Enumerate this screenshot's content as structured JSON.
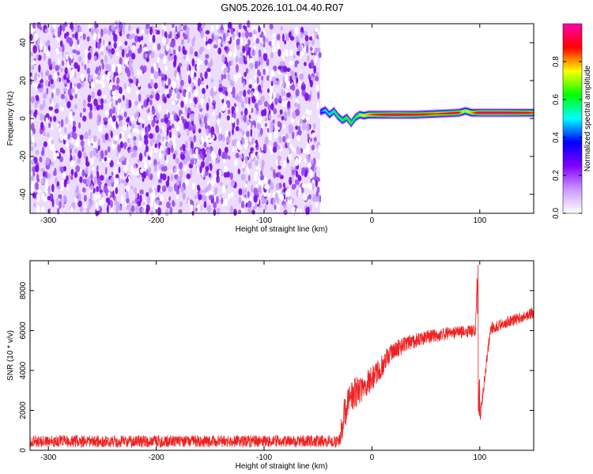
{
  "title": "GN05.2026.101.04.40.R07",
  "chart_data": [
    {
      "type": "heatmap",
      "name": "spectrogram",
      "xlabel": "Height of straight line (km)",
      "ylabel": "Frequency (Hz)",
      "xlim": [
        -317,
        150
      ],
      "ylim": [
        -50,
        50
      ],
      "xticks": [
        -300,
        -200,
        -100,
        0,
        100
      ],
      "xtick_labels": [
        "-300",
        "-200",
        "-100",
        "0",
        "100"
      ],
      "yticks": [
        -40,
        -20,
        0,
        20,
        40
      ],
      "ytick_labels": [
        "-40",
        "-20",
        "0",
        "20",
        "40"
      ],
      "noise_region_x": [
        -317,
        -48
      ],
      "signal_ridge": {
        "x": [
          -48,
          -44,
          -40,
          -36,
          -32,
          -28,
          -24,
          -20,
          -16,
          -12,
          -8,
          -4,
          0,
          10,
          20,
          40,
          60,
          80,
          86,
          92,
          100,
          120,
          140,
          150
        ],
        "freq": [
          3.5,
          4.5,
          2.0,
          4.0,
          1.0,
          -1.0,
          0.5,
          -2.5,
          0.5,
          2.0,
          1.5,
          2.0,
          2.0,
          2.0,
          2.0,
          2.0,
          2.5,
          3.0,
          4.0,
          3.0,
          3.0,
          3.0,
          3.0,
          3.0
        ],
        "amplitude": [
          0.4,
          0.5,
          0.5,
          0.6,
          0.6,
          0.6,
          0.65,
          0.65,
          0.6,
          0.7,
          0.75,
          0.8,
          0.85,
          0.9,
          0.95,
          0.9,
          0.85,
          0.9,
          0.7,
          0.8,
          0.95,
          0.95,
          0.9,
          0.85
        ]
      },
      "colorbar": {
        "label": "Normalized spectral amplitude",
        "range": [
          0.0,
          1.0
        ],
        "ticks": [
          0.0,
          0.2,
          0.4,
          0.6,
          0.8
        ],
        "tick_labels": [
          "0.0",
          "0.2",
          "0.4",
          "0.6",
          "0.8"
        ],
        "colors": [
          "#ffffff",
          "#cc99ff",
          "#7f00ff",
          "#0000ff",
          "#00ffff",
          "#00ff00",
          "#ffff00",
          "#ff0000",
          "#ff00aa"
        ]
      }
    },
    {
      "type": "line",
      "name": "snr",
      "xlabel": "Height of straight line (km)",
      "ylabel": "SNR (10 * v/v)",
      "xlim": [
        -317,
        150
      ],
      "ylim": [
        0,
        9500
      ],
      "xticks": [
        -300,
        -200,
        -100,
        0,
        100
      ],
      "xtick_labels": [
        "-300",
        "-200",
        "-100",
        "0",
        "100"
      ],
      "yticks": [
        0,
        2000,
        4000,
        6000,
        8000
      ],
      "ytick_labels": [
        "0",
        "2000",
        "4000",
        "6000",
        "8000"
      ],
      "series": [
        {
          "name": "SNR",
          "color": "#ee2222",
          "x": [
            -317,
            -30,
            -27,
            -22,
            -17,
            -12,
            -7,
            -2,
            5,
            10,
            15,
            20,
            30,
            40,
            50,
            60,
            70,
            80,
            90,
            96,
            98,
            100,
            110,
            120,
            130,
            140,
            150
          ],
          "y": [
            450,
            450,
            1500,
            2300,
            2800,
            3000,
            3300,
            3500,
            3900,
            4300,
            4700,
            5000,
            5300,
            5500,
            5650,
            5750,
            5850,
            5900,
            5950,
            6000,
            9500,
            1500,
            6100,
            6300,
            6500,
            6700,
            6900
          ],
          "noise_amplitude": [
            300,
            300,
            900,
            800,
            800,
            750,
            700,
            650,
            600,
            550,
            500,
            450,
            400,
            380,
            360,
            340,
            330,
            320,
            310,
            300,
            300,
            300,
            300,
            300,
            300,
            300,
            300
          ]
        }
      ]
    }
  ]
}
